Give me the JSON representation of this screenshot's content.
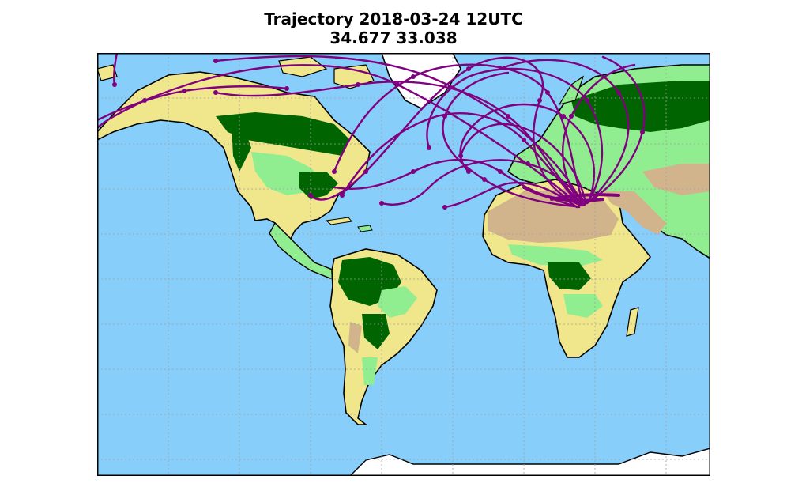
{
  "title": {
    "line1": "Trajectory 2018-03-24 12UTC",
    "line2": "34.677 33.038"
  },
  "map": {
    "projection": "Robinson-like world map centered on the Atlantic",
    "origin_point": {
      "lat": 34.677,
      "lon": 33.038
    },
    "colors": {
      "ocean": "#87cefa",
      "desert": "#d2b48c",
      "savanna": "#f0e68c",
      "grassland": "#90ee90",
      "forest": "#006400",
      "ice": "#ffffff",
      "trajectory": "#800080",
      "coast": "#000000",
      "grid": "#a0a0a0"
    },
    "gridlines": true,
    "layers": [
      "land-cover",
      "coastlines",
      "graticule",
      "trajectories"
    ]
  }
}
